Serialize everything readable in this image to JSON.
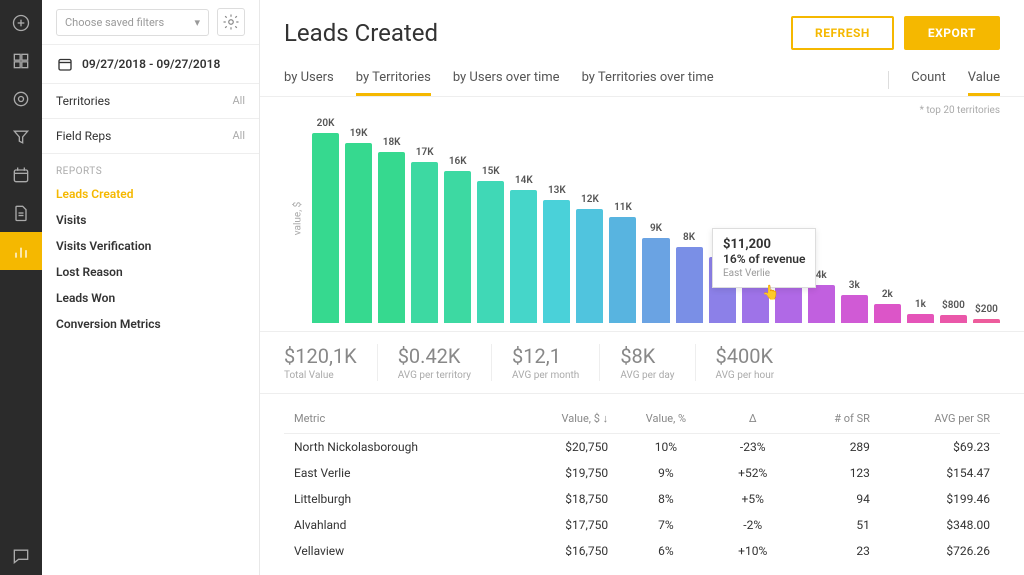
{
  "sidebar": {
    "filter_placeholder": "Choose saved filters",
    "date_range": "09/27/2018 - 09/27/2018",
    "filters": [
      {
        "label": "Territories",
        "value": "All"
      },
      {
        "label": "Field Reps",
        "value": "All"
      }
    ],
    "reports_header": "REPORTS",
    "reports": [
      "Leads Created",
      "Visits",
      "Visits Verification",
      "Lost Reason",
      "Leads Won",
      "Conversion Metrics"
    ],
    "active_report": 0
  },
  "header": {
    "title": "Leads Created",
    "refresh": "REFRESH",
    "export": "EXPORT"
  },
  "tabs": {
    "groups": [
      "by Users",
      "by Territories",
      "by Users over time",
      "by Territories over time"
    ],
    "active_group": 1,
    "metrics": [
      "Count",
      "Value"
    ],
    "active_metric": 1
  },
  "chart": {
    "type": "bar",
    "note": "* top 20 territories",
    "yaxis_label": "value, $",
    "max_value": 20000,
    "bars": [
      {
        "label": "20K",
        "value": 20000,
        "color": "#36d98f"
      },
      {
        "label": "19K",
        "value": 19000,
        "color": "#36d98f"
      },
      {
        "label": "18K",
        "value": 18000,
        "color": "#36d98f"
      },
      {
        "label": "17K",
        "value": 17000,
        "color": "#3dd9a2"
      },
      {
        "label": "16K",
        "value": 16000,
        "color": "#3dd9a2"
      },
      {
        "label": "15K",
        "value": 15000,
        "color": "#40d8b6"
      },
      {
        "label": "14K",
        "value": 14000,
        "color": "#45d6c9"
      },
      {
        "label": "13K",
        "value": 13000,
        "color": "#4ad1d9"
      },
      {
        "label": "12K",
        "value": 12000,
        "color": "#50c4de"
      },
      {
        "label": "11K",
        "value": 11200,
        "color": "#58b4e0"
      },
      {
        "label": "9K",
        "value": 9000,
        "color": "#6aa3e3"
      },
      {
        "label": "8K",
        "value": 8000,
        "color": "#7a8fe6"
      },
      {
        "label": "7K",
        "value": 7000,
        "color": "#8c80e8"
      },
      {
        "label": "6K",
        "value": 6000,
        "color": "#9e73e8"
      },
      {
        "label": "5k",
        "value": 5000,
        "color": "#b069e6"
      },
      {
        "label": "4k",
        "value": 4000,
        "color": "#c160df"
      },
      {
        "label": "3k",
        "value": 3000,
        "color": "#d05ad5"
      },
      {
        "label": "2k",
        "value": 2000,
        "color": "#dc55c8"
      },
      {
        "label": "1k",
        "value": 1000,
        "color": "#e554b9"
      },
      {
        "label": "$800",
        "value": 800,
        "color": "#ea57a9"
      },
      {
        "label": "$200",
        "value": 200,
        "color": "#ed5c9c"
      }
    ],
    "tooltip": {
      "value": "$11,200",
      "pct": "16% of revenue",
      "territory": "East Verlie"
    }
  },
  "stats": [
    {
      "value": "$120,1K",
      "label": "Total Value"
    },
    {
      "value": "$0.42K",
      "label": "AVG per territory"
    },
    {
      "value": "$12,1",
      "label": "AVG per month"
    },
    {
      "value": "$8K",
      "label": "AVG per day"
    },
    {
      "value": "$400K",
      "label": "AVG per hour"
    }
  ],
  "table": {
    "columns": [
      "Metric",
      "Value, $",
      "Value, %",
      "Δ",
      "# of SR",
      "AVG per SR"
    ],
    "sort_col": 1,
    "rows": [
      {
        "metric": "North Nickolasborough",
        "value": "$20,750",
        "pct": "10%",
        "delta": "-23%",
        "delta_sign": "neg",
        "sr": "289",
        "avg": "$69.23"
      },
      {
        "metric": "East Verlie",
        "value": "$19,750",
        "pct": "9%",
        "delta": "+52%",
        "delta_sign": "pos",
        "sr": "123",
        "avg": "$154.47"
      },
      {
        "metric": "Littelburgh",
        "value": "$18,750",
        "pct": "8%",
        "delta": "+5%",
        "delta_sign": "pos",
        "sr": "94",
        "avg": "$199.46"
      },
      {
        "metric": "Alvahland",
        "value": "$17,750",
        "pct": "7%",
        "delta": "-2%",
        "delta_sign": "neg",
        "sr": "51",
        "avg": "$348.00"
      },
      {
        "metric": "Vellaview",
        "value": "$16,750",
        "pct": "6%",
        "delta": "+10%",
        "delta_sign": "pos",
        "sr": "23",
        "avg": "$726.26"
      }
    ]
  }
}
